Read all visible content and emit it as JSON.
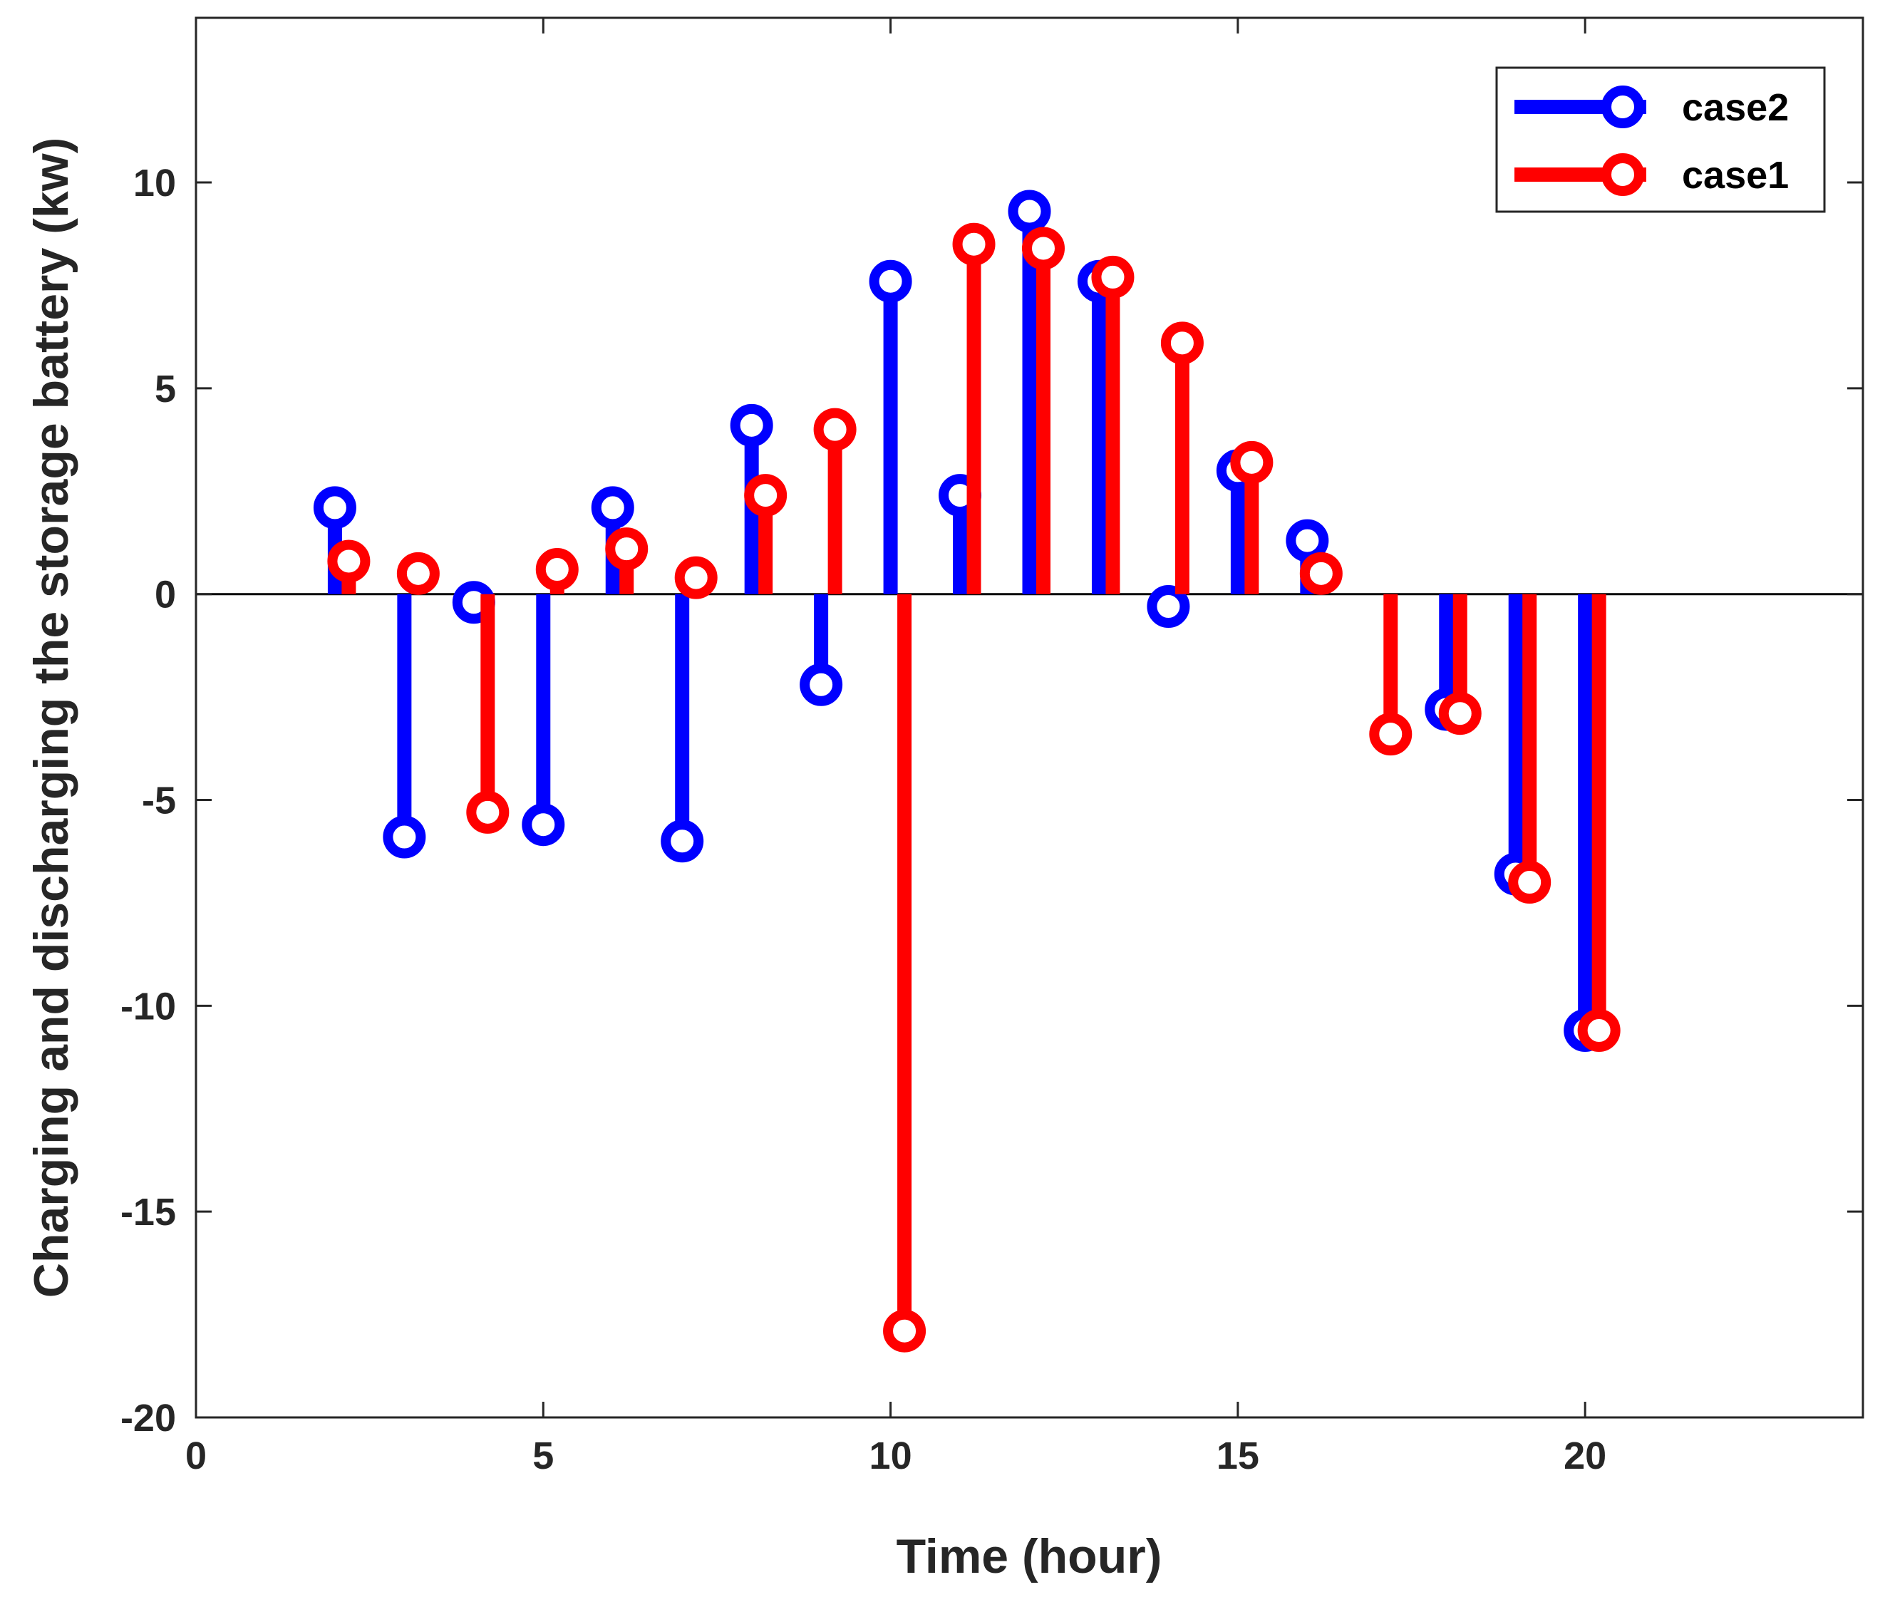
{
  "chart_data": {
    "type": "stem",
    "title": "",
    "xlabel": "Time (hour)",
    "ylabel": "Charging and discharging the storage battery (kw)",
    "xlim": [
      0,
      24
    ],
    "ylim": [
      -20,
      14
    ],
    "xticks": [
      0,
      5,
      10,
      15,
      20
    ],
    "yticks": [
      -20,
      -15,
      -10,
      -5,
      0,
      5,
      10
    ],
    "grid": false,
    "legend_position": "top-right",
    "series": [
      {
        "name": "case2",
        "color": "#0000ff",
        "x": [
          2,
          3,
          4,
          5,
          6,
          7,
          8,
          9,
          10,
          11,
          12,
          13,
          14,
          15,
          16,
          18,
          19,
          20
        ],
        "values": [
          2.1,
          -5.9,
          -0.2,
          -5.6,
          2.1,
          -6.0,
          4.1,
          -2.2,
          7.6,
          2.4,
          9.3,
          7.6,
          -0.3,
          3.0,
          1.3,
          -2.8,
          -6.8,
          -10.6
        ]
      },
      {
        "name": "case1",
        "color": "#ff0000",
        "x": [
          2.2,
          3.2,
          4.2,
          5.2,
          6.2,
          7.2,
          8.2,
          9.2,
          10.2,
          11.2,
          12.2,
          13.2,
          14.2,
          15.2,
          16.2,
          17.2,
          18.2,
          19.2,
          20.2
        ],
        "values": [
          0.8,
          0.5,
          -5.3,
          0.6,
          1.1,
          0.4,
          2.4,
          4.0,
          -17.9,
          8.5,
          8.4,
          7.7,
          6.1,
          3.2,
          0.5,
          -3.4,
          -2.9,
          -7.0,
          -10.6
        ]
      }
    ]
  }
}
